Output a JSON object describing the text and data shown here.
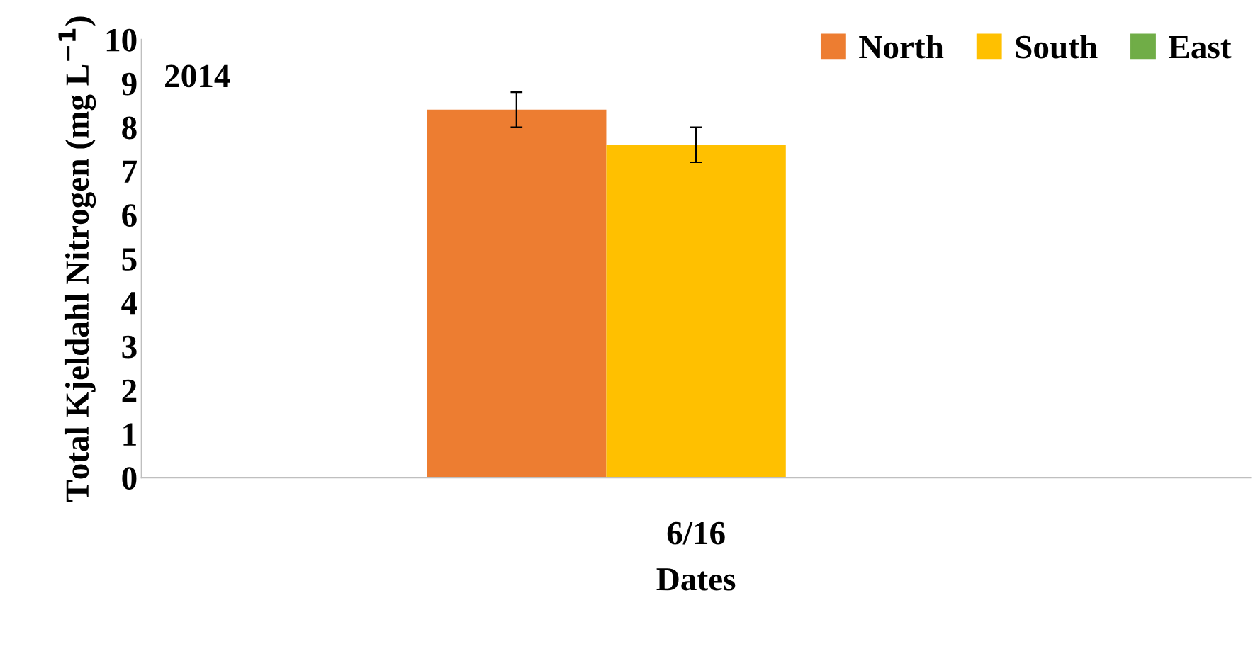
{
  "chart_data": {
    "type": "bar",
    "title": "2014",
    "xlabel": "Dates",
    "ylabel": "Total Kjeldahl Nitrogen (mg L$^{−1}$)",
    "categories": [
      "6/16"
    ],
    "series": [
      {
        "name": "North",
        "color": "#ed7d31",
        "values": [
          8.4
        ],
        "errors": [
          0.4
        ]
      },
      {
        "name": "South",
        "color": "#ffc000",
        "values": [
          7.6
        ],
        "errors": [
          0.4
        ]
      },
      {
        "name": "East",
        "color": "#70ad47",
        "values": [
          null
        ],
        "errors": [
          null
        ]
      }
    ],
    "ylim": [
      0,
      10
    ],
    "yticks": [
      0,
      1,
      2,
      3,
      4,
      5,
      6,
      7,
      8,
      9,
      10
    ],
    "grid": false,
    "legend": "top right"
  }
}
